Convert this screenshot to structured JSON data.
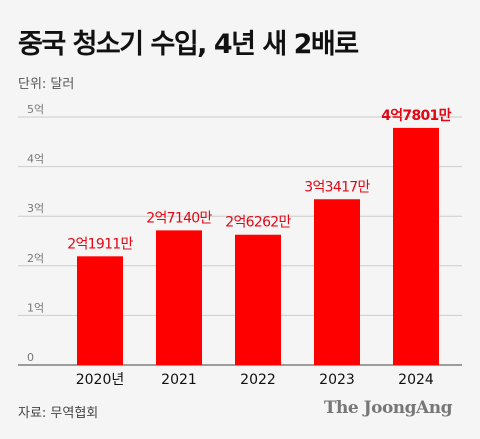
{
  "header": {
    "title": "중국 청소기 수입, 4년 새 2배로",
    "unit_label": "단위: 달러"
  },
  "footer": {
    "source": "자료: 무역협회",
    "brand": "The JoongAng"
  },
  "colors": {
    "bar": "#ff0000",
    "highlight_label": "#e30613",
    "gridline": "#cccccc"
  },
  "chart_data": {
    "type": "bar",
    "title": "중국 청소기 수입, 4년 새 2배로",
    "ylabel": "단위: 달러",
    "xlabel": "",
    "categories": [
      "2020년",
      "2021",
      "2022",
      "2023",
      "2024"
    ],
    "values": [
      219110000,
      271400000,
      262620000,
      334170000,
      478010000
    ],
    "data_labels": [
      "2억1911만",
      "2억7140만",
      "2억6262만",
      "3억3417만",
      "4억7801만"
    ],
    "ylim": [
      0,
      500000000
    ],
    "yticks": [
      0,
      100000000,
      200000000,
      300000000,
      400000000,
      500000000
    ],
    "ytick_labels": [
      "0",
      "1억",
      "2억",
      "3억",
      "4억",
      "5억"
    ],
    "grid": true,
    "legend": "none"
  }
}
